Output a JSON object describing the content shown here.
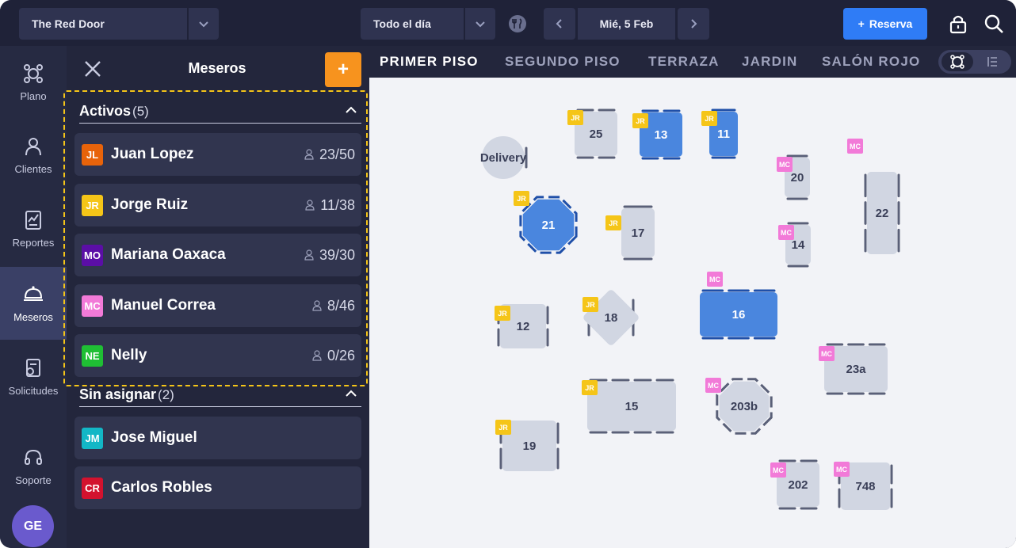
{
  "topbar": {
    "restaurant": "The Red Door",
    "period": "Todo el día",
    "date": "Mié, 5 Feb",
    "reserva_label": "Reserva",
    "reserva_plus": "+"
  },
  "nav": [
    {
      "label": "Plano",
      "icon": "floorplan-icon",
      "active": false
    },
    {
      "label": "Clientes",
      "icon": "user-icon",
      "active": false
    },
    {
      "label": "Reportes",
      "icon": "report-icon",
      "active": false
    },
    {
      "label": "Meseros",
      "icon": "waiter-icon",
      "active": true
    },
    {
      "label": "Solicitudes",
      "icon": "requests-icon",
      "active": false
    },
    {
      "label": "Soporte",
      "icon": "headset-icon",
      "active": false
    }
  ],
  "user_initials": "GE",
  "panel": {
    "title": "Meseros",
    "add_symbol": "+",
    "active_section": {
      "name": "Activos",
      "count": "(5)"
    },
    "active_waiters": [
      {
        "initials": "JL",
        "name": "Juan Lopez",
        "capacity": "23/50",
        "color": "#e8630a"
      },
      {
        "initials": "JR",
        "name": "Jorge Ruiz",
        "capacity": "11/38",
        "color": "#f5c518"
      },
      {
        "initials": "MO",
        "name": "Mariana Oaxaca",
        "capacity": "39/30",
        "color": "#5b0ea6"
      },
      {
        "initials": "MC",
        "name": "Manuel Correa",
        "capacity": "8/46",
        "color": "#f27ad8"
      },
      {
        "initials": "NE",
        "name": "Nelly",
        "capacity": "0/26",
        "color": "#1fbf34"
      }
    ],
    "unassigned_section": {
      "name": "Sin asignar",
      "count": "(2)"
    },
    "unassigned_waiters": [
      {
        "initials": "JM",
        "name": "Jose Miguel",
        "color": "#13b7c6"
      },
      {
        "initials": "CR",
        "name": "Carlos Robles",
        "color": "#d3122e"
      }
    ]
  },
  "tabs": [
    "PRIMER PISO",
    "SEGUNDO PISO",
    "TERRAZA",
    "JARDIN",
    "SALÓN ROJO"
  ],
  "active_tab": "PRIMER PISO",
  "tables": [
    {
      "label": "Delivery",
      "shape": "round",
      "selected": false,
      "tag": ""
    },
    {
      "label": "25",
      "shape": "rect",
      "selected": false,
      "tag": "JR"
    },
    {
      "label": "13",
      "shape": "rect",
      "selected": true,
      "tag": "JR"
    },
    {
      "label": "11",
      "shape": "rect",
      "selected": true,
      "tag": "JR"
    },
    {
      "label": "20",
      "shape": "rect",
      "selected": false,
      "tag": "MC"
    },
    {
      "label": "22",
      "shape": "rect",
      "selected": false,
      "tag": "MC"
    },
    {
      "label": "21",
      "shape": "octagon",
      "selected": true,
      "tag": "JR"
    },
    {
      "label": "17",
      "shape": "rect",
      "selected": false,
      "tag": "JR"
    },
    {
      "label": "14",
      "shape": "rect",
      "selected": false,
      "tag": "MC"
    },
    {
      "label": "16",
      "shape": "rect",
      "selected": true,
      "tag": "MC"
    },
    {
      "label": "12",
      "shape": "rect",
      "selected": false,
      "tag": "JR"
    },
    {
      "label": "18",
      "shape": "diamond",
      "selected": false,
      "tag": "JR"
    },
    {
      "label": "23a",
      "shape": "rect",
      "selected": false,
      "tag": "MC"
    },
    {
      "label": "15",
      "shape": "rect",
      "selected": false,
      "tag": "JR"
    },
    {
      "label": "203b",
      "shape": "octagon",
      "selected": false,
      "tag": "MC"
    },
    {
      "label": "19",
      "shape": "rect",
      "selected": false,
      "tag": "JR"
    },
    {
      "label": "202",
      "shape": "rect",
      "selected": false,
      "tag": "MC"
    },
    {
      "label": "748",
      "shape": "rect",
      "selected": false,
      "tag": "MC"
    }
  ],
  "colors": {
    "accent_blue": "#2f7cf6",
    "table_selected": "#4a86de",
    "table_idle": "#d1d6e2",
    "tag_jr": "#f5c518",
    "tag_mc": "#f27ad8",
    "add_orange": "#f7931e"
  }
}
